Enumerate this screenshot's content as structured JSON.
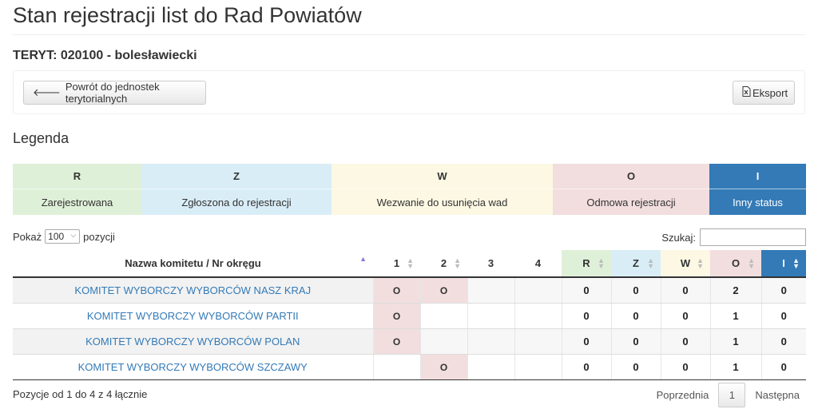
{
  "page": {
    "title": "Stan rejestracji list do Rad Powiatów",
    "teryt": "TERYT: 020100 - bolesławiecki"
  },
  "toolbar": {
    "back_label": "Powrót do jednostek terytorialnych",
    "export_label": "Eksport"
  },
  "legend": {
    "title": "Legenda",
    "items": [
      {
        "code": "R",
        "label": "Zarejestrowana",
        "color": "#dff0d8"
      },
      {
        "code": "Z",
        "label": "Zgłoszona do rejestracji",
        "color": "#d9edf7"
      },
      {
        "code": "W",
        "label": "Wezwanie do usunięcia wad",
        "color": "#fcf8e3"
      },
      {
        "code": "O",
        "label": "Odmowa rejestracji",
        "color": "#f2dede"
      },
      {
        "code": "I",
        "label": "Inny status",
        "color": "#337ab7"
      }
    ]
  },
  "length_control": {
    "prefix": "Pokaż",
    "value": "100",
    "suffix": "pozycji"
  },
  "search": {
    "label": "Szukaj:",
    "value": ""
  },
  "table": {
    "headers": [
      "Nazwa komitetu / Nr okręgu",
      "1",
      "2",
      "3",
      "4",
      "R",
      "Z",
      "W",
      "O",
      "I"
    ],
    "rows": [
      {
        "name": "KOMITET WYBORCZY WYBORCÓW NASZ KRAJ",
        "d1": "O",
        "d2": "O",
        "d3": "",
        "d4": "",
        "r": "0",
        "z": "0",
        "w": "0",
        "o": "2",
        "i": "0"
      },
      {
        "name": "KOMITET WYBORCZY WYBORCÓW PARTII",
        "d1": "O",
        "d2": "",
        "d3": "",
        "d4": "",
        "r": "0",
        "z": "0",
        "w": "0",
        "o": "1",
        "i": "0"
      },
      {
        "name": "KOMITET WYBORCZY WYBORCÓW POLAN",
        "d1": "O",
        "d2": "",
        "d3": "",
        "d4": "",
        "r": "0",
        "z": "0",
        "w": "0",
        "o": "1",
        "i": "0"
      },
      {
        "name": "KOMITET WYBORCZY WYBORCÓW SZCZAWY",
        "d1": "",
        "d2": "O",
        "d3": "",
        "d4": "",
        "r": "0",
        "z": "0",
        "w": "0",
        "o": "1",
        "i": "0"
      }
    ]
  },
  "footer": {
    "info": "Pozycje od 1 do 4 z 4 łącznie",
    "prev": "Poprzednia",
    "current_page": "1",
    "next": "Następna"
  }
}
